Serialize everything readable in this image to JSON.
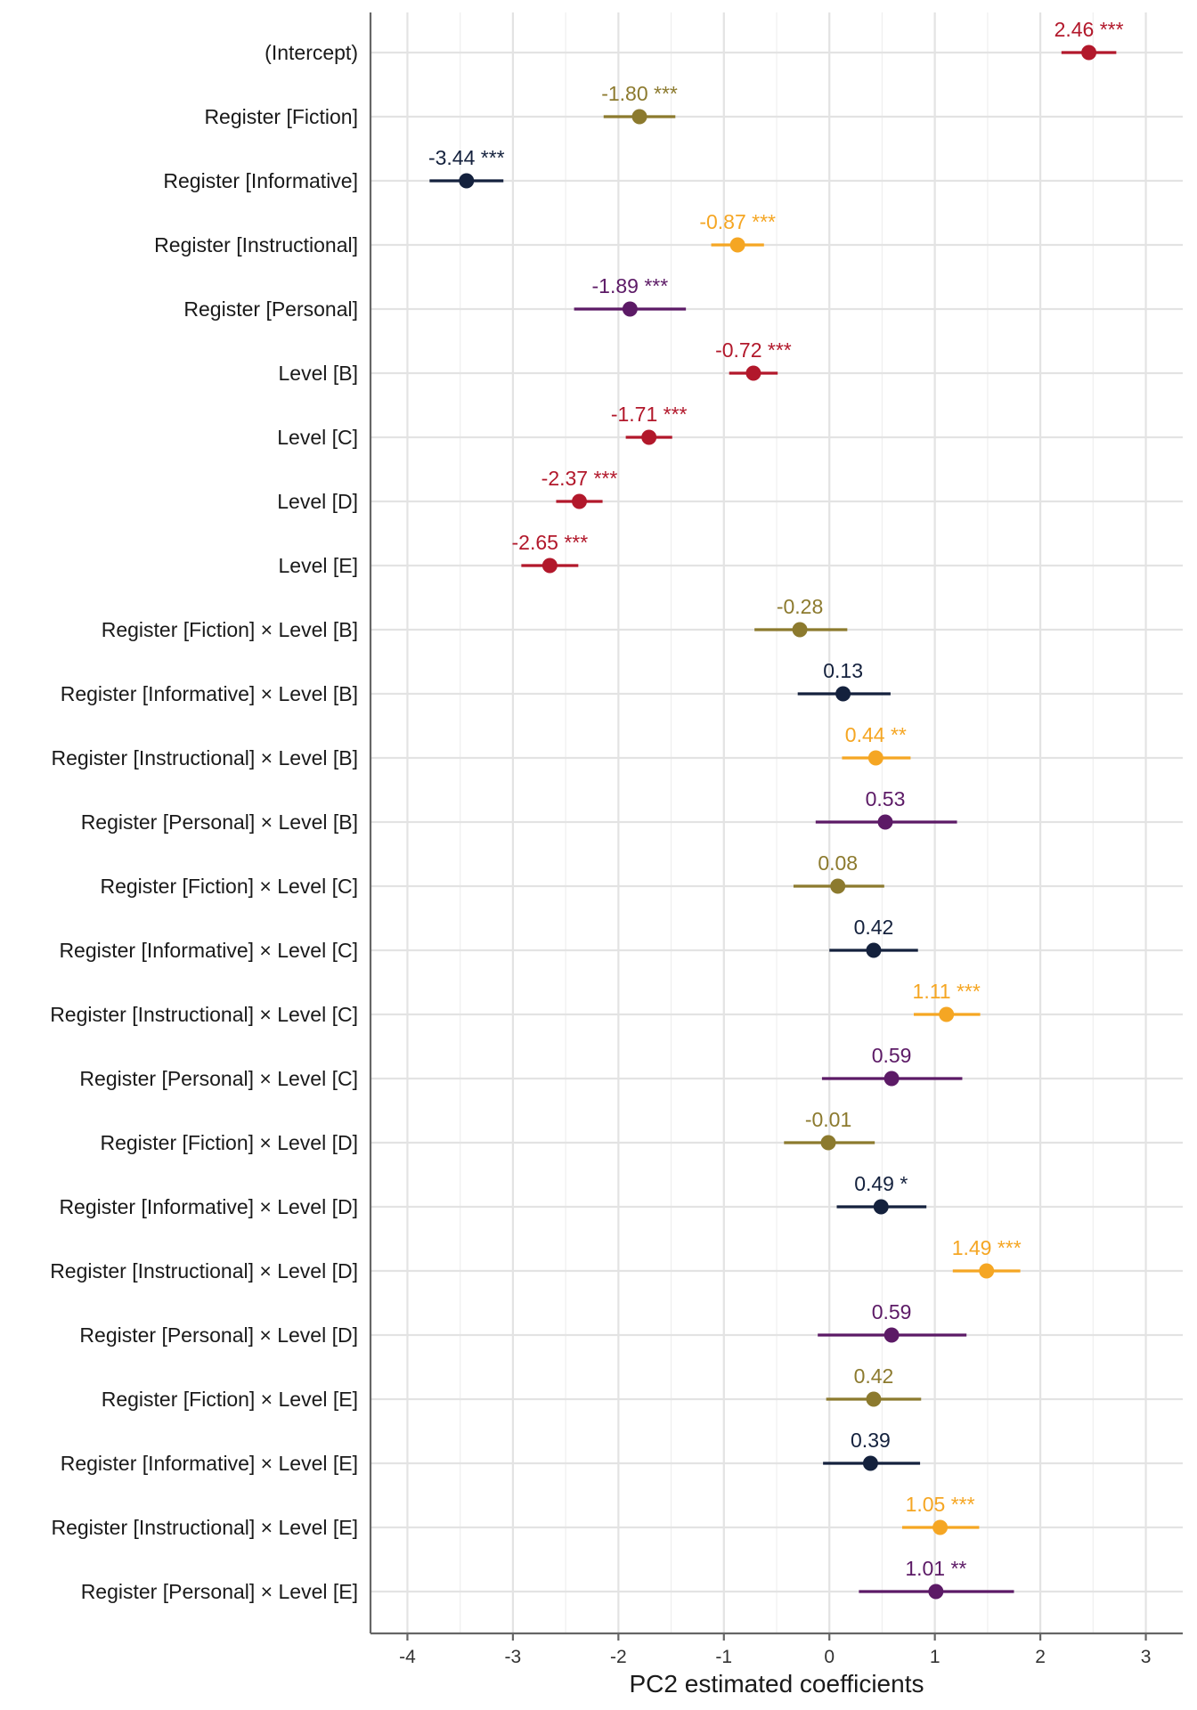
{
  "chart_data": {
    "type": "scatter",
    "subtype": "coefficient-plot",
    "title": "",
    "xlabel": "PC2 estimated coefficients",
    "ylabel": "",
    "xlim": [
      -4.35,
      3.35
    ],
    "xticks": [
      -4,
      -3,
      -2,
      -1,
      0,
      1,
      2,
      3
    ],
    "grid": true,
    "legend": "none",
    "colors": {
      "red": "#b2182b",
      "olive": "#8c7a2e",
      "navy": "#14213d",
      "orange": "#f5a623",
      "purple": "#5c1a66"
    },
    "rows": [
      {
        "term": "(Intercept)",
        "estimate": 2.46,
        "low": 2.2,
        "high": 2.72,
        "label": "2.46 ***",
        "color": "red"
      },
      {
        "term": "Register [Fiction]",
        "estimate": -1.8,
        "low": -2.14,
        "high": -1.46,
        "label": "-1.80 ***",
        "color": "olive"
      },
      {
        "term": "Register [Informative]",
        "estimate": -3.44,
        "low": -3.79,
        "high": -3.09,
        "label": "-3.44 ***",
        "color": "navy"
      },
      {
        "term": "Register [Instructional]",
        "estimate": -0.87,
        "low": -1.12,
        "high": -0.62,
        "label": "-0.87 ***",
        "color": "orange"
      },
      {
        "term": "Register [Personal]",
        "estimate": -1.89,
        "low": -2.42,
        "high": -1.36,
        "label": "-1.89 ***",
        "color": "purple"
      },
      {
        "term": "Level [B]",
        "estimate": -0.72,
        "low": -0.95,
        "high": -0.49,
        "label": "-0.72 ***",
        "color": "red"
      },
      {
        "term": "Level [C]",
        "estimate": -1.71,
        "low": -1.93,
        "high": -1.49,
        "label": "-1.71 ***",
        "color": "red"
      },
      {
        "term": "Level [D]",
        "estimate": -2.37,
        "low": -2.59,
        "high": -2.15,
        "label": "-2.37 ***",
        "color": "red"
      },
      {
        "term": "Level [E]",
        "estimate": -2.65,
        "low": -2.92,
        "high": -2.38,
        "label": "-2.65 ***",
        "color": "red"
      },
      {
        "term": "Register [Fiction] × Level [B]",
        "estimate": -0.28,
        "low": -0.71,
        "high": 0.17,
        "label": "-0.28",
        "color": "olive"
      },
      {
        "term": "Register [Informative] × Level [B]",
        "estimate": 0.13,
        "low": -0.3,
        "high": 0.58,
        "label": "0.13",
        "color": "navy"
      },
      {
        "term": "Register [Instructional] × Level [B]",
        "estimate": 0.44,
        "low": 0.12,
        "high": 0.77,
        "label": "0.44 **",
        "color": "orange"
      },
      {
        "term": "Register [Personal] × Level [B]",
        "estimate": 0.53,
        "low": -0.13,
        "high": 1.21,
        "label": "0.53",
        "color": "purple"
      },
      {
        "term": "Register [Fiction] × Level [C]",
        "estimate": 0.08,
        "low": -0.34,
        "high": 0.52,
        "label": "0.08",
        "color": "olive"
      },
      {
        "term": "Register [Informative] × Level [C]",
        "estimate": 0.42,
        "low": 0.0,
        "high": 0.84,
        "label": "0.42",
        "color": "navy"
      },
      {
        "term": "Register [Instructional] × Level [C]",
        "estimate": 1.11,
        "low": 0.8,
        "high": 1.43,
        "label": "1.11 ***",
        "color": "orange"
      },
      {
        "term": "Register [Personal] × Level [C]",
        "estimate": 0.59,
        "low": -0.07,
        "high": 1.26,
        "label": "0.59",
        "color": "purple"
      },
      {
        "term": "Register [Fiction] × Level [D]",
        "estimate": -0.01,
        "low": -0.43,
        "high": 0.43,
        "label": "-0.01",
        "color": "olive"
      },
      {
        "term": "Register [Informative] × Level [D]",
        "estimate": 0.49,
        "low": 0.07,
        "high": 0.92,
        "label": "0.49 *",
        "color": "navy"
      },
      {
        "term": "Register [Instructional] × Level [D]",
        "estimate": 1.49,
        "low": 1.17,
        "high": 1.81,
        "label": "1.49 ***",
        "color": "orange"
      },
      {
        "term": "Register [Personal] × Level [D]",
        "estimate": 0.59,
        "low": -0.11,
        "high": 1.3,
        "label": "0.59",
        "color": "purple"
      },
      {
        "term": "Register [Fiction] × Level [E]",
        "estimate": 0.42,
        "low": -0.03,
        "high": 0.87,
        "label": "0.42",
        "color": "olive"
      },
      {
        "term": "Register [Informative] × Level [E]",
        "estimate": 0.39,
        "low": -0.06,
        "high": 0.86,
        "label": "0.39",
        "color": "navy"
      },
      {
        "term": "Register [Instructional] × Level [E]",
        "estimate": 1.05,
        "low": 0.69,
        "high": 1.42,
        "label": "1.05 ***",
        "color": "orange"
      },
      {
        "term": "Register [Personal] × Level [E]",
        "estimate": 1.01,
        "low": 0.28,
        "high": 1.75,
        "label": "1.01 **",
        "color": "purple"
      }
    ]
  }
}
